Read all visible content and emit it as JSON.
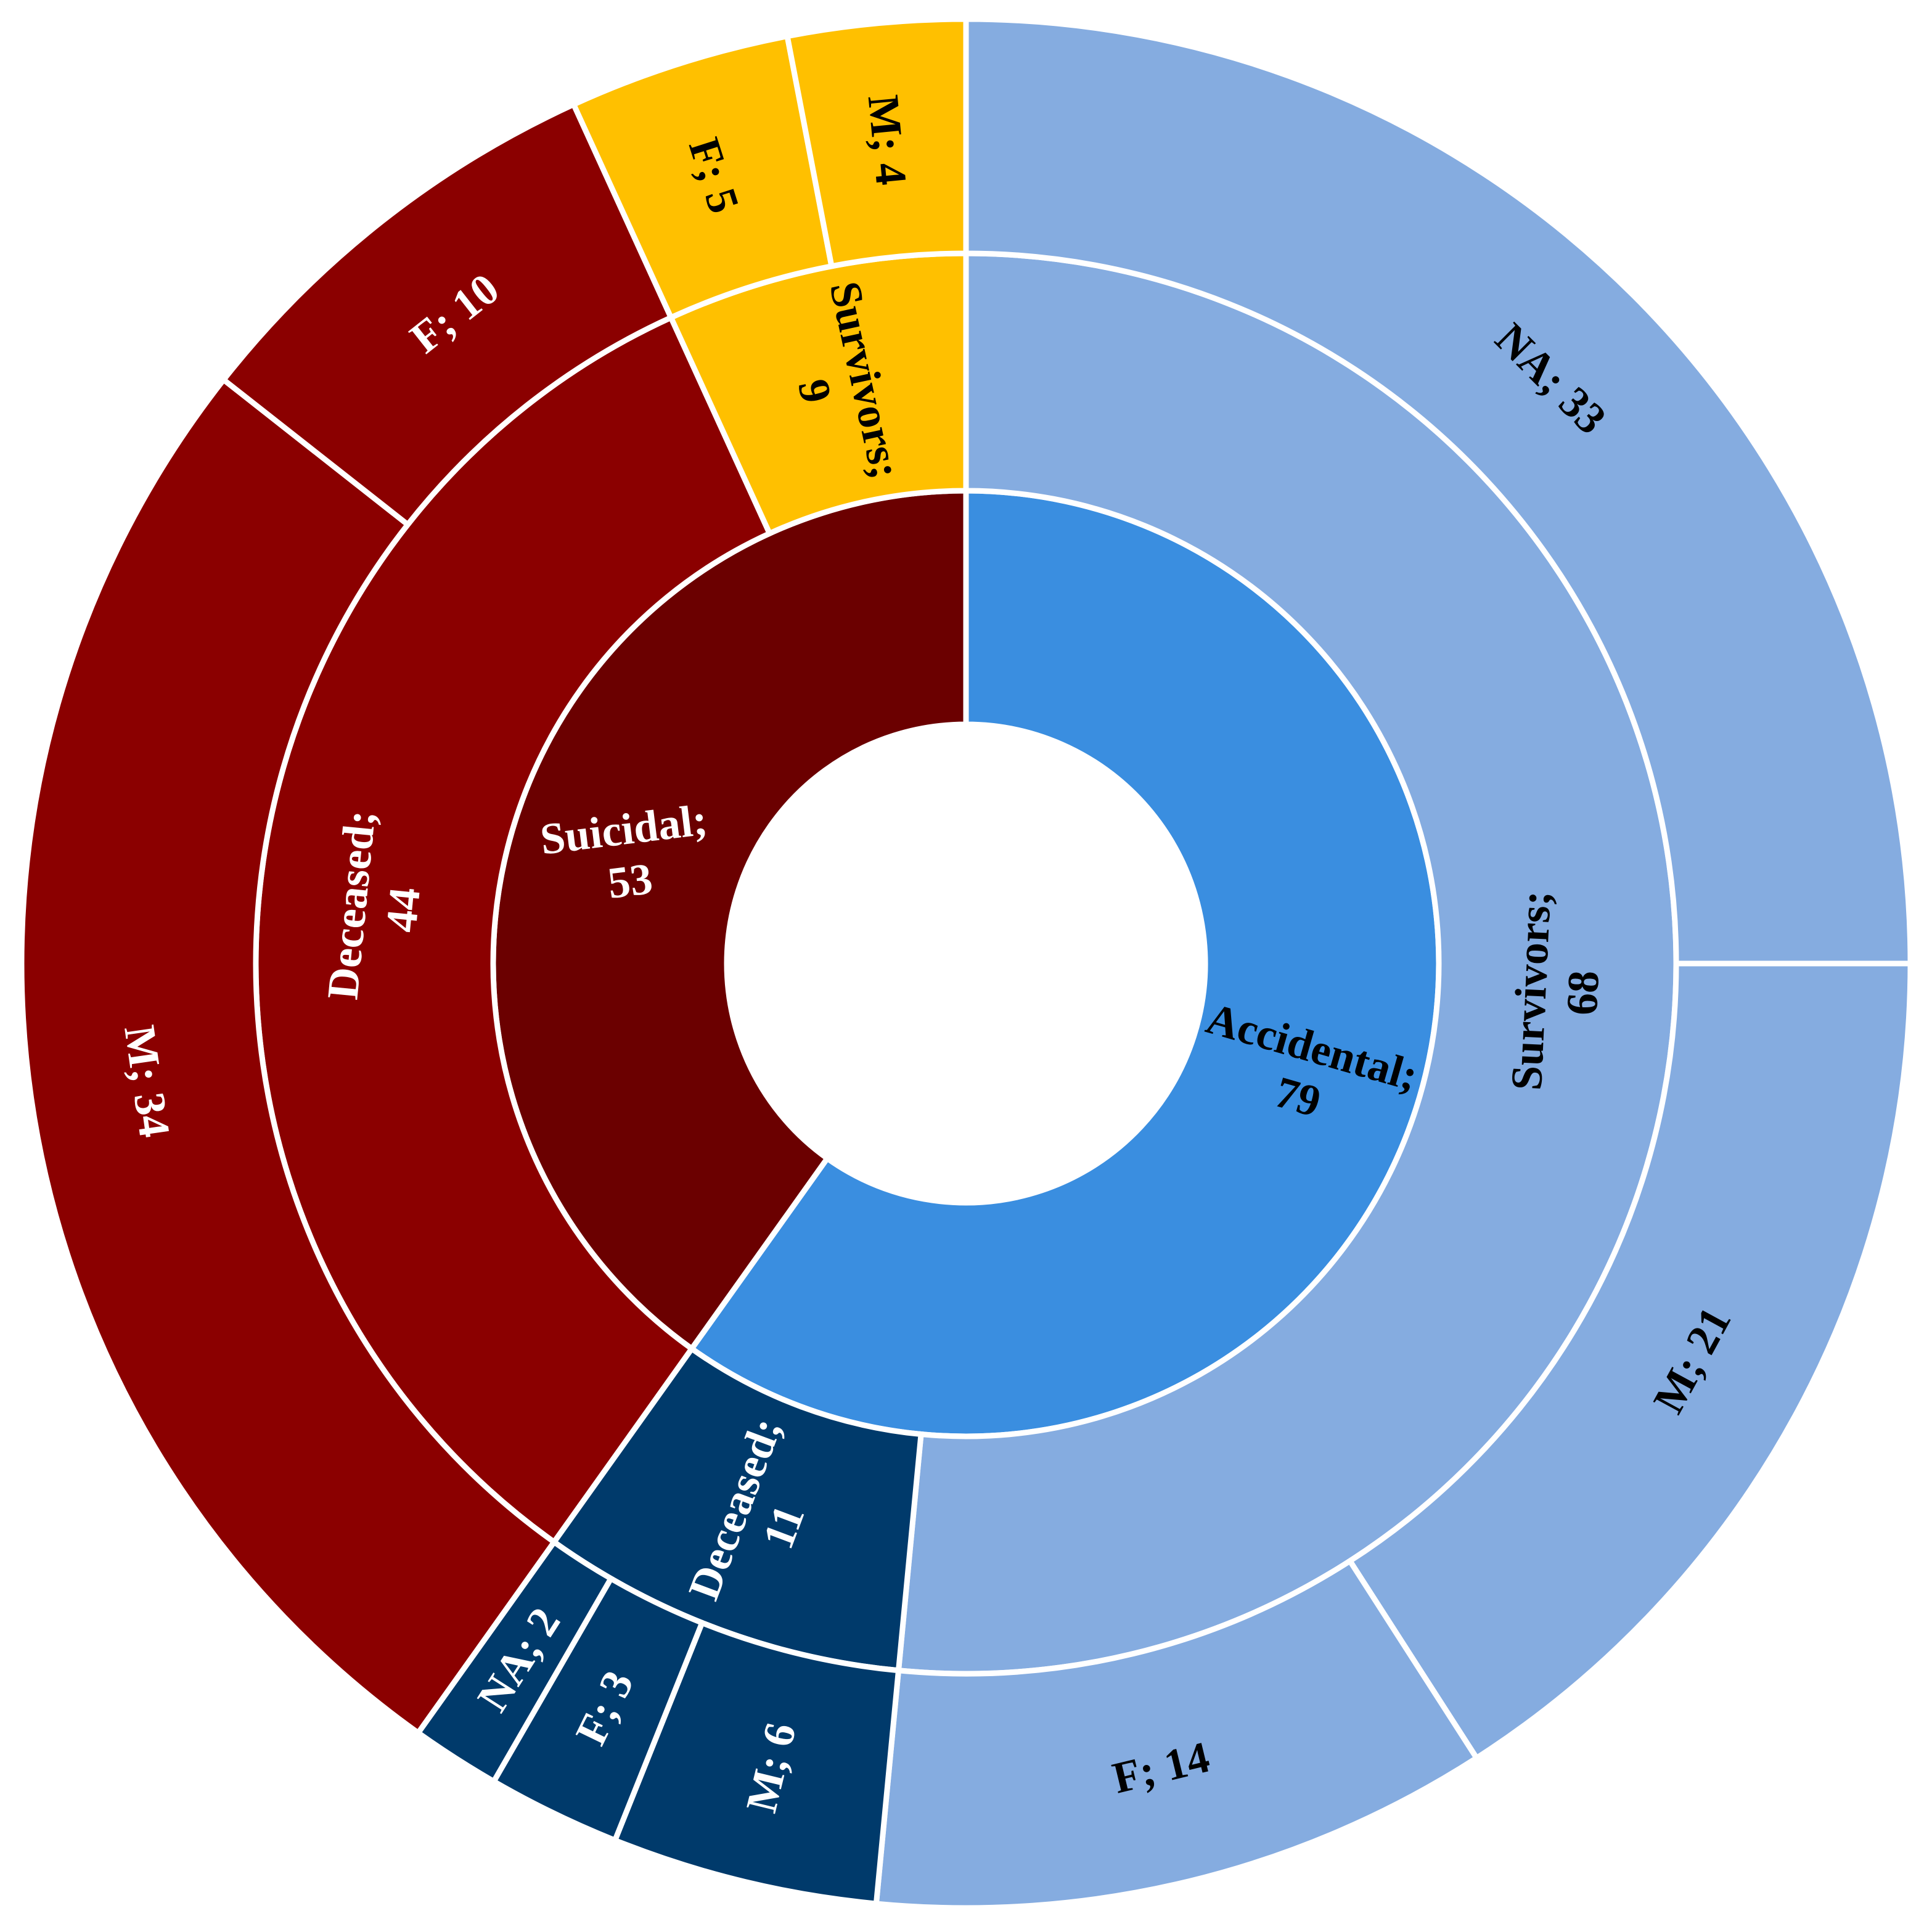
{
  "chart_data": {
    "type": "sunburst",
    "title": "",
    "rings": [
      {
        "level": "manner",
        "segments": [
          {
            "label": "Accidental; 79",
            "name": "Accidental",
            "value": 79,
            "color": "#3a8ee0",
            "text_color": "#000000"
          },
          {
            "label": "Suicidal; 53",
            "name": "Suicidal",
            "value": 53,
            "color": "#6b0000",
            "text_color": "#ffffff"
          }
        ]
      },
      {
        "level": "outcome",
        "segments": [
          {
            "label": "Survivors; 68",
            "parent": "Accidental",
            "name": "Survivors",
            "value": 68,
            "color": "#85ace0",
            "text_color": "#000000"
          },
          {
            "label": "Deceased; 11",
            "parent": "Accidental",
            "name": "Deceased",
            "value": 11,
            "color": "#003a6b",
            "text_color": "#ffffff"
          },
          {
            "label": "Deceased; 44",
            "parent": "Suicidal",
            "name": "Deceased",
            "value": 44,
            "color": "#8b0000",
            "text_color": "#ffffff"
          },
          {
            "label": "Survivors; 9",
            "parent": "Suicidal",
            "name": "Survivors",
            "value": 9,
            "color": "#ffc000",
            "text_color": "#000000"
          }
        ]
      },
      {
        "level": "sex",
        "segments": [
          {
            "label": "NA; 33",
            "parent": "Accidental / Survivors",
            "name": "NA",
            "value": 33,
            "color": "#85ace0",
            "text_color": "#000000"
          },
          {
            "label": "M; 21",
            "parent": "Accidental / Survivors",
            "name": "M",
            "value": 21,
            "color": "#85ace0",
            "text_color": "#000000"
          },
          {
            "label": "F; 14",
            "parent": "Accidental / Survivors",
            "name": "F",
            "value": 14,
            "color": "#85ace0",
            "text_color": "#000000"
          },
          {
            "label": "M; 6",
            "parent": "Accidental / Deceased",
            "name": "M",
            "value": 6,
            "color": "#003a6b",
            "text_color": "#ffffff"
          },
          {
            "label": "F; 3",
            "parent": "Accidental / Deceased",
            "name": "F",
            "value": 3,
            "color": "#003a6b",
            "text_color": "#ffffff"
          },
          {
            "label": "NA; 2",
            "parent": "Accidental / Deceased",
            "name": "NA",
            "value": 2,
            "color": "#003a6b",
            "text_color": "#ffffff"
          },
          {
            "label": "M; 34",
            "parent": "Suicidal / Deceased",
            "name": "M",
            "value": 34,
            "color": "#8b0000",
            "text_color": "#ffffff"
          },
          {
            "label": "F; 10",
            "parent": "Suicidal / Deceased",
            "name": "F",
            "value": 10,
            "color": "#8b0000",
            "text_color": "#ffffff"
          },
          {
            "label": "F; 5",
            "parent": "Suicidal / Survivors",
            "name": "F",
            "value": 5,
            "color": "#ffc000",
            "text_color": "#000000"
          },
          {
            "label": "M; 4",
            "parent": "Suicidal / Survivors",
            "name": "M",
            "value": 4,
            "color": "#ffc000",
            "text_color": "#000000"
          }
        ]
      }
    ]
  }
}
